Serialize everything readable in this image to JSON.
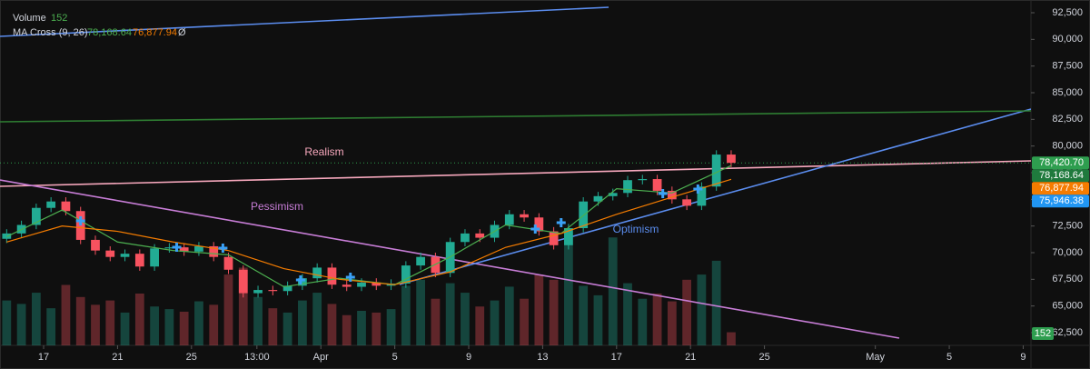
{
  "chart_data": {
    "type": "candlestick",
    "x": [
      -2,
      -1.2,
      -0.4,
      0.4,
      1.2,
      2,
      2.8,
      3.6,
      4.4,
      5.2,
      6,
      6.8,
      7.6,
      8.4,
      9.2,
      10,
      10.8,
      11.6,
      12.4,
      13.2,
      14,
      14.8,
      15.6,
      16.4,
      17.2,
      18,
      18.8,
      19.6,
      20.4,
      21.2,
      22,
      22.8,
      23.6,
      24.4,
      25.2,
      26,
      26.8,
      27.6,
      28.4,
      29.2,
      30,
      30.8,
      31.6,
      32.4,
      33.2,
      34,
      34.8,
      35.6,
      36.4,
      37.2
    ],
    "open": [
      71300,
      71800,
      72600,
      74200,
      74800,
      73900,
      71200,
      70200,
      69600,
      69900,
      68700,
      70400,
      70500,
      70100,
      70600,
      69600,
      68400,
      66200,
      66500,
      66400,
      66900,
      67600,
      68600,
      67000,
      66800,
      67200,
      66900,
      67100,
      68800,
      69600,
      68100,
      71000,
      71800,
      71400,
      72600,
      73600,
      73300,
      72000,
      70700,
      72300,
      74800,
      75300,
      75600,
      76800,
      76900,
      75800,
      75000,
      74400,
      76200,
      79200
    ],
    "high": [
      72200,
      73000,
      74600,
      75200,
      75200,
      74300,
      71600,
      70600,
      70300,
      70300,
      70800,
      70900,
      70900,
      71000,
      71000,
      70000,
      68800,
      66900,
      66900,
      67300,
      68000,
      69000,
      69000,
      67400,
      67600,
      67600,
      67500,
      69200,
      70000,
      70000,
      71400,
      72200,
      72200,
      73000,
      74000,
      74000,
      73700,
      72400,
      72700,
      75200,
      75700,
      76000,
      77200,
      77300,
      77300,
      76200,
      75400,
      76600,
      79600,
      79600
    ],
    "low": [
      70900,
      71400,
      72200,
      73800,
      73500,
      70800,
      69800,
      69200,
      69200,
      68300,
      68300,
      70000,
      69700,
      69700,
      69200,
      68000,
      65800,
      65800,
      66000,
      66000,
      66500,
      67200,
      66600,
      66400,
      66400,
      66500,
      66500,
      66700,
      68400,
      67700,
      67700,
      70600,
      71000,
      71000,
      72200,
      72900,
      71600,
      70300,
      70300,
      71900,
      74400,
      74900,
      75200,
      76400,
      75400,
      74600,
      74000,
      74000,
      75800,
      78020
    ],
    "close": [
      71800,
      72600,
      74200,
      74800,
      73900,
      71200,
      70200,
      69600,
      69900,
      68700,
      70400,
      70500,
      70100,
      70600,
      69600,
      68400,
      66200,
      66500,
      66400,
      66900,
      67600,
      68600,
      67000,
      66800,
      67200,
      66900,
      67100,
      68800,
      69600,
      68100,
      71000,
      71800,
      71400,
      72600,
      73600,
      73300,
      72000,
      70700,
      72300,
      74800,
      75300,
      75600,
      76800,
      76900,
      75800,
      75000,
      74400,
      76200,
      79200,
      78420.7
    ],
    "up_color": "#22ab94",
    "down_color": "#f7525f",
    "xlim": [
      -2.36,
      53.42
    ],
    "ylim": [
      61307,
      93693
    ],
    "y2lim": [
      0,
      4000
    ],
    "grid": false,
    "yticks": [
      {
        "value": 62500,
        "label": "62,500"
      },
      {
        "value": 65000,
        "label": "65,000"
      },
      {
        "value": 67500,
        "label": "67,500"
      },
      {
        "value": 70000,
        "label": "70,000"
      },
      {
        "value": 72500,
        "label": "72,500"
      },
      {
        "value": 75000,
        "label": "75,000"
      },
      {
        "value": 77500,
        "label": "77,500"
      },
      {
        "value": 80000,
        "label": "80,000"
      },
      {
        "value": 82500,
        "label": "82,500"
      },
      {
        "value": 85000,
        "label": "85,000"
      },
      {
        "value": 87500,
        "label": "87,500"
      },
      {
        "value": 90000,
        "label": "90,000"
      },
      {
        "value": 92500,
        "label": "92,500"
      }
    ],
    "xticks": [
      {
        "value": 0,
        "label": "17"
      },
      {
        "value": 4,
        "label": "21"
      },
      {
        "value": 8,
        "label": "25"
      },
      {
        "value": 11.54,
        "label": "13:00"
      },
      {
        "value": 15,
        "label": "Apr"
      },
      {
        "value": 19,
        "label": "5"
      },
      {
        "value": 23,
        "label": "9"
      },
      {
        "value": 27,
        "label": "13"
      },
      {
        "value": 31,
        "label": "17"
      },
      {
        "value": 35,
        "label": "21"
      },
      {
        "value": 39,
        "label": "25"
      },
      {
        "value": 45,
        "label": "May"
      },
      {
        "value": 49,
        "label": "5"
      },
      {
        "value": 53,
        "label": "9"
      }
    ],
    "series": [
      {
        "name": "Volume",
        "axis": "y2",
        "color": "#4caf50",
        "values": [
          520,
          480,
          610,
          430,
          700,
          560,
          470,
          520,
          380,
          600,
          450,
          420,
          390,
          510,
          470,
          820,
          900,
          560,
          430,
          380,
          520,
          610,
          480,
          350,
          400,
          380,
          420,
          690,
          760,
          540,
          720,
          610,
          450,
          520,
          680,
          540,
          820,
          760,
          1300,
          690,
          580,
          1250,
          720,
          540,
          600,
          510,
          760,
          820,
          980,
          152
        ]
      },
      {
        "type": "line",
        "color": "#4caf50",
        "x": [
          -2,
          1,
          4,
          7,
          10,
          13,
          16,
          19,
          22,
          25,
          28,
          31,
          34,
          37.2
        ],
        "values": [
          71500,
          74000,
          71000,
          70200,
          69800,
          66800,
          67600,
          67000,
          69600,
          72600,
          71800,
          76000,
          75600,
          78168.64
        ]
      },
      {
        "type": "line",
        "color": "#f57c00",
        "x": [
          -2,
          1,
          4,
          7,
          10,
          13,
          16,
          19,
          22,
          25,
          28,
          31,
          34,
          37.2
        ],
        "values": [
          71000,
          72500,
          72000,
          71000,
          70200,
          68500,
          67500,
          67000,
          68200,
          70500,
          71800,
          73600,
          75200,
          76877.94
        ]
      }
    ],
    "indicator": {
      "name": "MA Cross (9, 26)",
      "symbol": "Ø"
    },
    "price_tags": [
      {
        "value": 78420.7,
        "label": "78,420.70",
        "color": "#2e9e4f"
      },
      {
        "value": 78168.64,
        "label": "78,168.64",
        "color": "#1f7a3d"
      },
      {
        "value": 76877.94,
        "label": "76,877.94",
        "color": "#f57c00"
      },
      {
        "value": 75946.38,
        "label": "75,946.38",
        "color": "#2196f3"
      }
    ],
    "trendlines": [
      {
        "label": "Realism",
        "color": "#f7a8bd",
        "x": [
          -2.36,
          53.42
        ],
        "y": [
          76222,
          78608
        ]
      },
      {
        "label": "Pessimism",
        "color": "#c77dd6",
        "x": [
          -2.36,
          46.29
        ],
        "y": [
          76818,
          61990
        ]
      },
      {
        "label": "Optimism",
        "color": "#5b8def",
        "x": [
          19.26,
          53.42
        ],
        "y": [
          67017,
          83466
        ]
      },
      {
        "color": "#5b8def",
        "x": [
          -2.36,
          30.57
        ],
        "y": [
          90284,
          93011
        ]
      },
      {
        "color": "#2e7d32",
        "x": [
          -2.36,
          53.42
        ],
        "y": [
          82273,
          83295
        ]
      }
    ],
    "signals": {
      "color": "#3aa0f5",
      "x": [
        2.0,
        7.2,
        9.7,
        13.9,
        16.6,
        26.6,
        28.0,
        33.5,
        35.4
      ],
      "y": [
        72980,
        70510,
        70430,
        67440,
        67700,
        72220,
        72810,
        75540,
        75970
      ]
    }
  }
}
